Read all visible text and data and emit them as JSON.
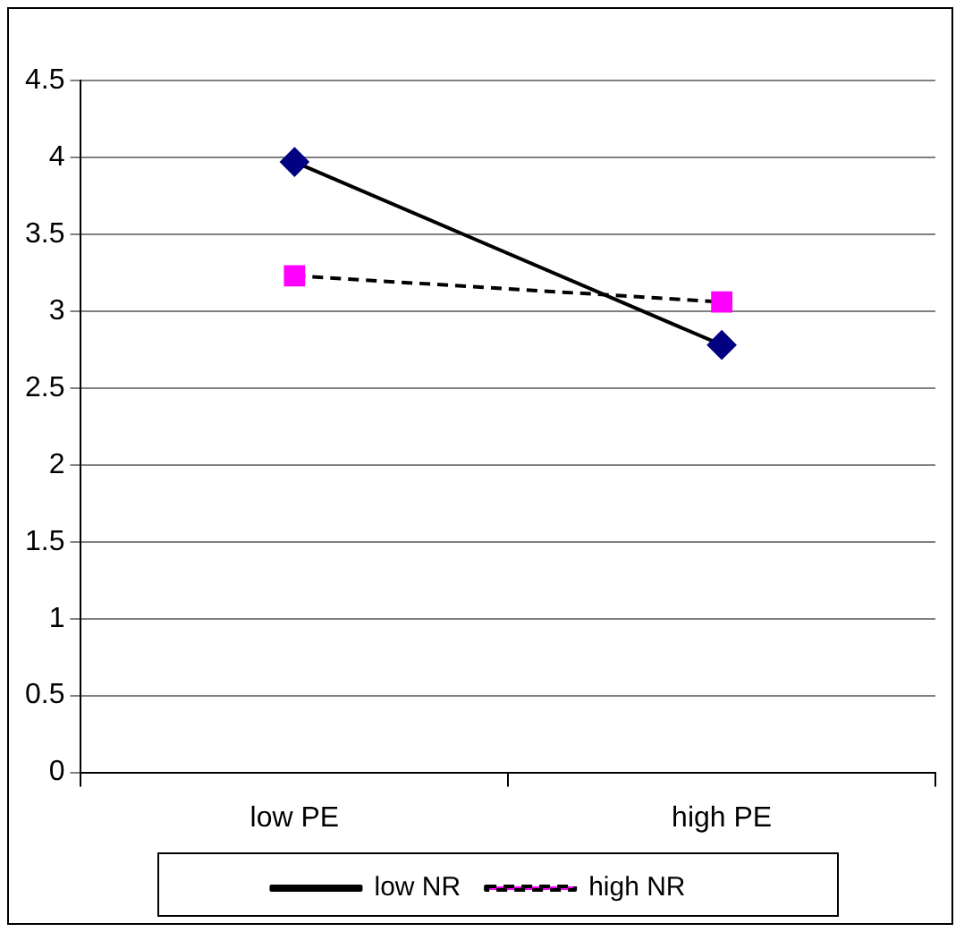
{
  "chart_data": {
    "type": "line",
    "categories": [
      "low PE",
      "high PE"
    ],
    "series": [
      {
        "name": "low NR",
        "color": "#000080",
        "values": [
          3.97,
          2.78
        ],
        "marker": "diamond",
        "line_style": "solid"
      },
      {
        "name": "high NR",
        "color": "#ff00ff",
        "values": [
          3.23,
          3.06
        ],
        "marker": "square",
        "line_style": "dashed"
      }
    ],
    "ylim": [
      0,
      4.5
    ],
    "yticks": [
      0,
      0.5,
      1,
      1.5,
      2,
      2.5,
      3,
      3.5,
      4,
      4.5
    ],
    "grid": "y",
    "legend": "bottom"
  }
}
